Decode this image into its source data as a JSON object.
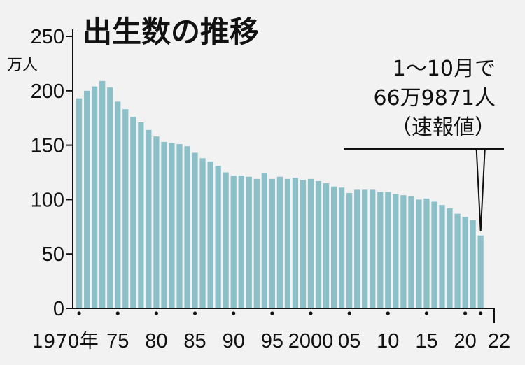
{
  "chart_data": {
    "type": "bar",
    "title": "出生数の推移",
    "unit_label": "万人",
    "ylim": [
      0,
      250
    ],
    "y_ticks": [
      "250",
      "200",
      "150",
      "100",
      "50",
      "0"
    ],
    "x_tick_labels": [
      "1970年",
      "75",
      "80",
      "85",
      "90",
      "95",
      "2000",
      "05",
      "10",
      "15",
      "20",
      "22"
    ],
    "x": [
      1970,
      1971,
      1972,
      1973,
      1974,
      1975,
      1976,
      1977,
      1978,
      1979,
      1980,
      1981,
      1982,
      1983,
      1984,
      1985,
      1986,
      1987,
      1988,
      1989,
      1990,
      1991,
      1992,
      1993,
      1994,
      1995,
      1996,
      1997,
      1998,
      1999,
      2000,
      2001,
      2002,
      2003,
      2004,
      2005,
      2006,
      2007,
      2008,
      2009,
      2010,
      2011,
      2012,
      2013,
      2014,
      2015,
      2016,
      2017,
      2018,
      2019,
      2020,
      2021,
      2022
    ],
    "values": [
      193,
      200,
      204,
      209,
      203,
      190,
      183,
      176,
      171,
      164,
      158,
      153,
      152,
      151,
      149,
      143,
      138,
      135,
      131,
      125,
      122,
      122,
      121,
      119,
      124,
      119,
      121,
      119,
      120,
      118,
      119,
      117,
      115,
      112,
      111,
      106,
      109,
      109,
      109,
      107,
      107,
      105,
      104,
      103,
      100,
      101,
      98,
      95,
      92,
      87,
      84,
      81,
      67
    ],
    "annotation_lines": [
      "1～10月で",
      "66万9871人",
      "（速報値）"
    ],
    "grid": false,
    "legend": "none"
  },
  "colors": {
    "bar": "#8cc0c9",
    "axis": "#111111",
    "background": "#f2f2f2"
  }
}
